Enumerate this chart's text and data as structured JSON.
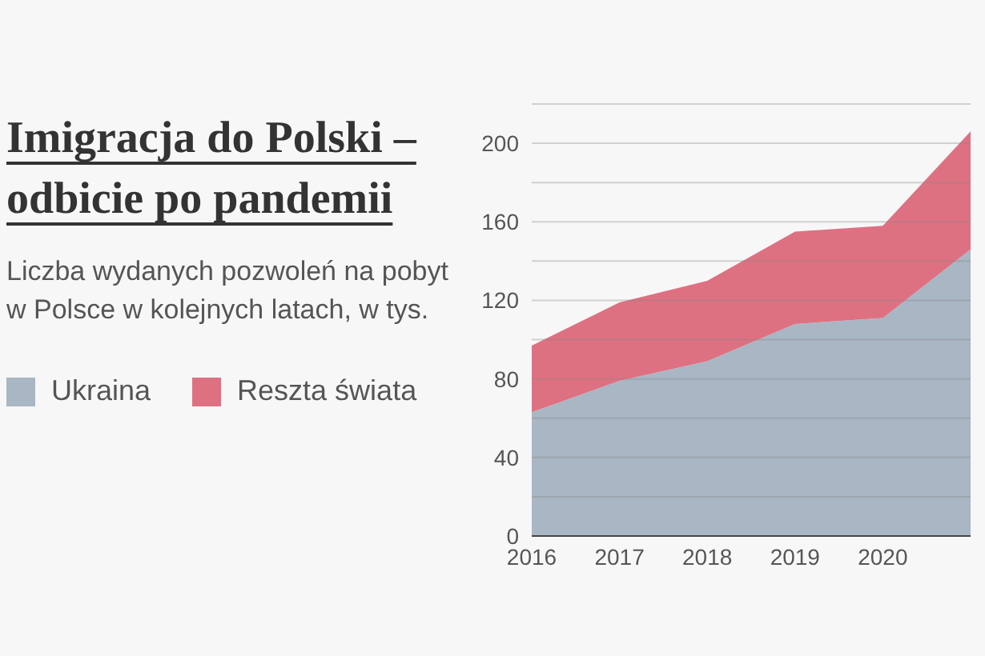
{
  "chart_data": {
    "type": "area",
    "title": "Imigracja do Polski – odbicie po pandemii",
    "subtitle": "Liczba wydanych pozwoleń na pobyt w Polsce w kolejnych latach, w tys.",
    "categories": [
      "2016",
      "2017",
      "2018",
      "2019",
      "2020",
      null
    ],
    "stacked": true,
    "series": [
      {
        "name": "Ukraina",
        "color": "#a9b6c4",
        "values": [
          63,
          79,
          89,
          108,
          111,
          146
        ]
      },
      {
        "name": "Reszta świata",
        "color": "#dd7182",
        "values": [
          34,
          40,
          41,
          47,
          47,
          60
        ]
      }
    ],
    "ylim": [
      0,
      220
    ],
    "yticks": [
      0,
      {
        "value": 20,
        "label": null
      },
      40,
      {
        "value": 60,
        "label": null
      },
      80,
      {
        "value": 100,
        "label": null
      },
      120,
      {
        "value": 140,
        "label": null
      },
      160,
      {
        "value": 180,
        "label": null
      },
      200,
      {
        "value": 220,
        "label": null
      }
    ],
    "grid": "y",
    "legend": "left"
  }
}
